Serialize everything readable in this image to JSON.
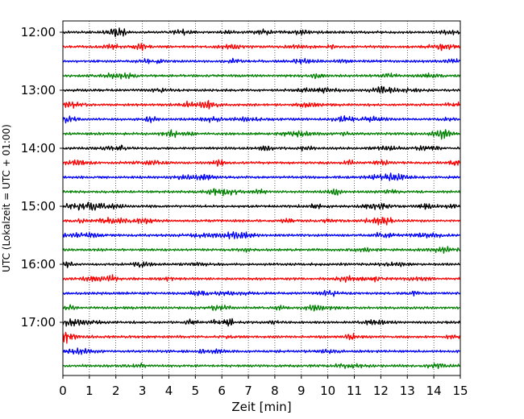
{
  "chart_data": {
    "type": "line",
    "title": "",
    "xlabel": "Zeit  [min]",
    "ylabel": "UTC (Lokalzeit = UTC + 01:00)",
    "xlim": [
      0,
      15
    ],
    "x_ticks": [
      0,
      1,
      2,
      3,
      4,
      5,
      6,
      7,
      8,
      9,
      10,
      11,
      12,
      13,
      14,
      15
    ],
    "y_tick_labels": [
      "12:00",
      "13:00",
      "14:00",
      "15:00",
      "16:00",
      "17:00"
    ],
    "trace_interval_minutes": 15,
    "grid": "x",
    "legend": "none",
    "series_colors": [
      "#000000",
      "#ff0000",
      "#0000ff",
      "#008000"
    ],
    "rows": [
      {
        "time": "12:00"
      },
      {
        "time": "12:15"
      },
      {
        "time": "12:30"
      },
      {
        "time": "12:45"
      },
      {
        "time": "13:00"
      },
      {
        "time": "13:15"
      },
      {
        "time": "13:30"
      },
      {
        "time": "13:45"
      },
      {
        "time": "14:00"
      },
      {
        "time": "14:15"
      },
      {
        "time": "14:30"
      },
      {
        "time": "14:45"
      },
      {
        "time": "15:00"
      },
      {
        "time": "15:15"
      },
      {
        "time": "15:30"
      },
      {
        "time": "15:45"
      },
      {
        "time": "16:00"
      },
      {
        "time": "16:15"
      },
      {
        "time": "16:30"
      },
      {
        "time": "16:45"
      },
      {
        "time": "17:00"
      },
      {
        "time": "17:15"
      },
      {
        "time": "17:30"
      },
      {
        "time": "17:45"
      }
    ]
  }
}
